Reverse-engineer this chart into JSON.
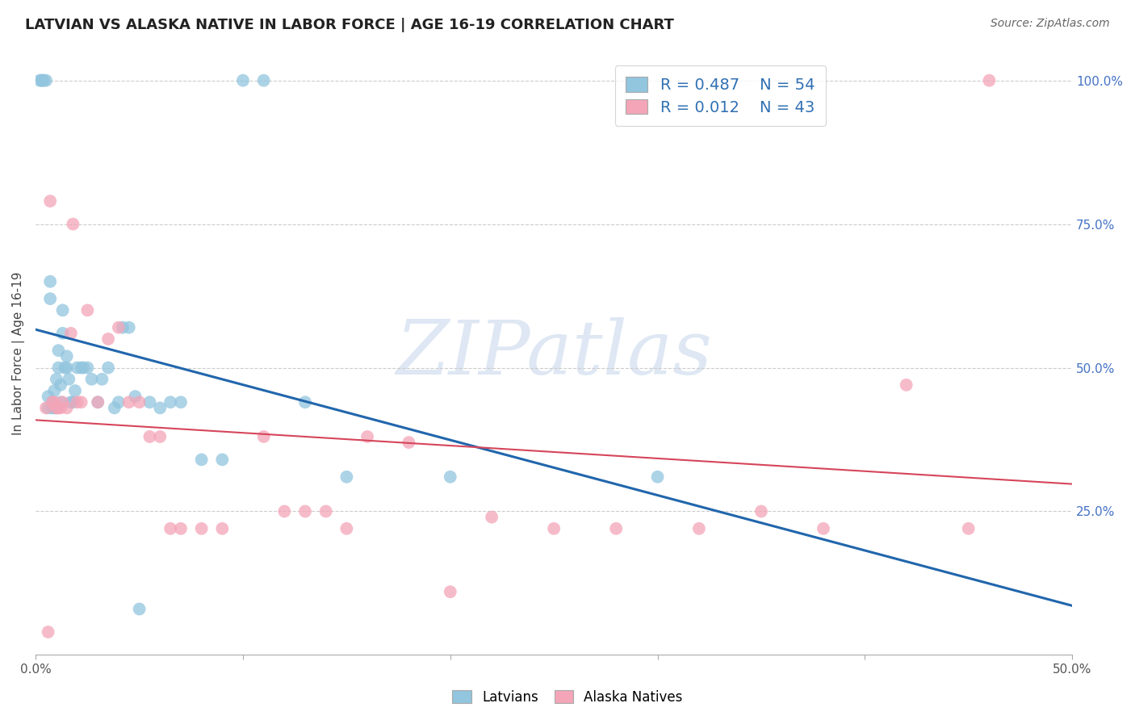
{
  "title": "LATVIAN VS ALASKA NATIVE IN LABOR FORCE | AGE 16-19 CORRELATION CHART",
  "source": "Source: ZipAtlas.com",
  "ylabel": "In Labor Force | Age 16-19",
  "xlim": [
    0.0,
    0.5
  ],
  "ylim": [
    0.0,
    1.05
  ],
  "xtick_positions": [
    0.0,
    0.1,
    0.2,
    0.3,
    0.4,
    0.5
  ],
  "xticklabels": [
    "0.0%",
    "",
    "",
    "",
    "",
    "50.0%"
  ],
  "ytick_positions": [
    0.25,
    0.5,
    0.75,
    1.0
  ],
  "yticklabels_right": [
    "25.0%",
    "50.0%",
    "75.0%",
    "100.0%"
  ],
  "blue_color": "#92c5de",
  "pink_color": "#f4a5b8",
  "blue_line_color": "#2166ac",
  "pink_line_color": "#d6455a",
  "legend_text_color": "#3070b3",
  "legend_R_blue": "0.487",
  "legend_N_blue": "54",
  "legend_R_pink": "0.012",
  "legend_N_pink": "43",
  "watermark_text": "ZIPatlas",
  "watermark_color": "#c8d8ec",
  "blue_x": [
    0.002,
    0.003,
    0.003,
    0.004,
    0.005,
    0.006,
    0.006,
    0.007,
    0.007,
    0.008,
    0.008,
    0.009,
    0.009,
    0.01,
    0.01,
    0.011,
    0.011,
    0.012,
    0.012,
    0.013,
    0.013,
    0.014,
    0.015,
    0.015,
    0.016,
    0.017,
    0.018,
    0.019,
    0.02,
    0.022,
    0.023,
    0.025,
    0.027,
    0.03,
    0.032,
    0.035,
    0.038,
    0.04,
    0.042,
    0.045,
    0.048,
    0.05,
    0.055,
    0.06,
    0.065,
    0.07,
    0.08,
    0.09,
    0.1,
    0.11,
    0.13,
    0.15,
    0.2,
    0.3
  ],
  "blue_y": [
    1.0,
    1.0,
    1.0,
    1.0,
    1.0,
    0.43,
    0.45,
    0.62,
    0.65,
    0.43,
    0.44,
    0.43,
    0.46,
    0.43,
    0.48,
    0.5,
    0.53,
    0.44,
    0.47,
    0.56,
    0.6,
    0.5,
    0.5,
    0.52,
    0.48,
    0.44,
    0.44,
    0.46,
    0.5,
    0.5,
    0.5,
    0.5,
    0.48,
    0.44,
    0.48,
    0.5,
    0.43,
    0.44,
    0.57,
    0.57,
    0.45,
    0.08,
    0.44,
    0.43,
    0.44,
    0.44,
    0.34,
    0.34,
    1.0,
    1.0,
    0.44,
    0.31,
    0.31,
    0.31
  ],
  "pink_x": [
    0.005,
    0.006,
    0.007,
    0.008,
    0.009,
    0.01,
    0.011,
    0.012,
    0.013,
    0.015,
    0.017,
    0.018,
    0.02,
    0.022,
    0.025,
    0.03,
    0.035,
    0.04,
    0.045,
    0.05,
    0.055,
    0.06,
    0.065,
    0.07,
    0.08,
    0.09,
    0.11,
    0.12,
    0.13,
    0.14,
    0.15,
    0.16,
    0.18,
    0.2,
    0.22,
    0.25,
    0.28,
    0.32,
    0.35,
    0.38,
    0.42,
    0.45,
    0.46
  ],
  "pink_y": [
    0.43,
    0.04,
    0.79,
    0.44,
    0.44,
    0.43,
    0.43,
    0.43,
    0.44,
    0.43,
    0.56,
    0.75,
    0.44,
    0.44,
    0.6,
    0.44,
    0.55,
    0.57,
    0.44,
    0.44,
    0.38,
    0.38,
    0.22,
    0.22,
    0.22,
    0.22,
    0.38,
    0.25,
    0.25,
    0.25,
    0.22,
    0.38,
    0.37,
    0.11,
    0.24,
    0.22,
    0.22,
    0.22,
    0.25,
    0.22,
    0.47,
    0.22,
    1.0
  ]
}
